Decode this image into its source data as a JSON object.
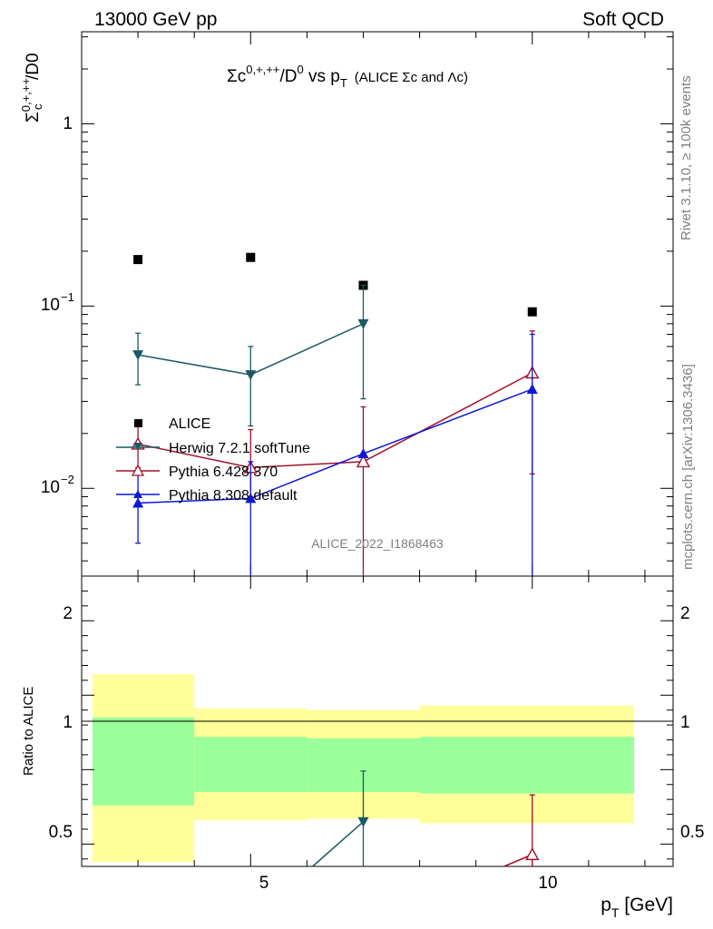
{
  "header": {
    "energy": "13000 GeV pp",
    "category": "Soft QCD"
  },
  "main_plot": {
    "title_main": "Σc",
    "title_sup": "0,+,++",
    "title_mid": "/D",
    "title_sup2": "0",
    "title_vs": " vs p",
    "title_sub": "T",
    "title_note": "(ALICE Σc and Λc)",
    "ylabel_main": "Σ",
    "ylabel_sup": "0,+,++",
    "ylabel_sub": "c",
    "ylabel_end": "/D0",
    "ytick_1": "1",
    "ytick_01_base": "10",
    "ytick_01_exp": "−1",
    "ytick_001_base": "10",
    "ytick_001_exp": "−2",
    "watermark": "ALICE_2022_I1868463"
  },
  "side_labels": {
    "rivet": "Rivet 3.1.10, ≥ 100k events",
    "mcplots": "mcplots.cern.ch [arXiv:1306.3436]"
  },
  "legend": {
    "alice": "ALICE",
    "herwig": "Herwig 7.2.1 softTune",
    "pythia6": "Pythia 6.428 370",
    "pythia8": "Pythia 8.308 default"
  },
  "ratio_plot": {
    "ylabel": "Ratio to ALICE",
    "ytick_2": "2",
    "ytick_1": "1",
    "ytick_05": "0.5",
    "xtick_5": "5",
    "xtick_10": "10"
  },
  "xlabel": {
    "main": "p",
    "sub": "T",
    "unit": " [GeV]"
  },
  "chart_data": {
    "type": "scatter",
    "title": "Σc0,+,++/D0 vs pT (ALICE Σc and Λc)",
    "xlabel": "pT [GeV]",
    "ylabel": "Σc0,+,++/D0",
    "xlim": [
      2,
      12.5
    ],
    "ylim": [
      0.0033,
      3.2
    ],
    "y_scale": "log",
    "ratio_ylim": [
      0.35,
      2.3
    ],
    "legend_position": "middle-left",
    "x_bins": [
      [
        2,
        4
      ],
      [
        4,
        6
      ],
      [
        6,
        8
      ],
      [
        8,
        12
      ]
    ],
    "series": [
      {
        "name": "ALICE",
        "color": "#000000",
        "marker": "square",
        "x": [
          3,
          5,
          7,
          10
        ],
        "y": [
          0.18,
          0.185,
          0.13,
          0.093
        ],
        "ratio_band_inner": [
          [
            0.76,
            1.35
          ],
          [
            0.85,
            1.22
          ],
          [
            0.85,
            1.21
          ],
          [
            0.84,
            1.22
          ]
        ],
        "ratio_band_outer": [
          [
            0.38,
            1.64
          ],
          [
            0.66,
            1.41
          ],
          [
            0.67,
            1.4
          ],
          [
            0.64,
            1.43
          ]
        ]
      },
      {
        "name": "Herwig 7.2.1 softTune",
        "color": "#1b5a63",
        "marker": "triangle-down",
        "x": [
          3,
          5,
          7
        ],
        "y": [
          0.054,
          0.042,
          0.08
        ],
        "yerr_low": [
          0.037,
          0.022,
          0.031
        ],
        "yerr_high": [
          0.071,
          0.06,
          0.13
        ],
        "ratio_x": [
          6.1,
          7
        ],
        "ratio_y": [
          0.33,
          0.65
        ],
        "ratio_err_high": [
          null,
          0.99
        ]
      },
      {
        "name": "Pythia 6.428 370",
        "color": "#a0122a",
        "marker": "triangle-up-open",
        "x": [
          3,
          5,
          7,
          10
        ],
        "y": [
          0.0175,
          0.013,
          0.014,
          0.043
        ],
        "yerr_low": [
          0.013,
          0.009,
          0.0033,
          0.012
        ],
        "yerr_high": [
          0.022,
          0.021,
          0.028,
          0.073
        ],
        "ratio_x": [
          9.5,
          10
        ],
        "ratio_y": [
          0.33,
          0.43
        ],
        "ratio_err_high": [
          null,
          0.83
        ]
      },
      {
        "name": "Pythia 8.308 default",
        "color": "#0d17d6",
        "marker": "triangle-up",
        "x": [
          3,
          5,
          7,
          10
        ],
        "y": [
          0.0083,
          0.0088,
          0.0155,
          0.035
        ],
        "yerr_low": [
          0.005,
          0.0033,
          0.0155,
          0.0033
        ],
        "yerr_high": [
          0.0119,
          0.014,
          0.0155,
          0.07
        ]
      }
    ]
  }
}
